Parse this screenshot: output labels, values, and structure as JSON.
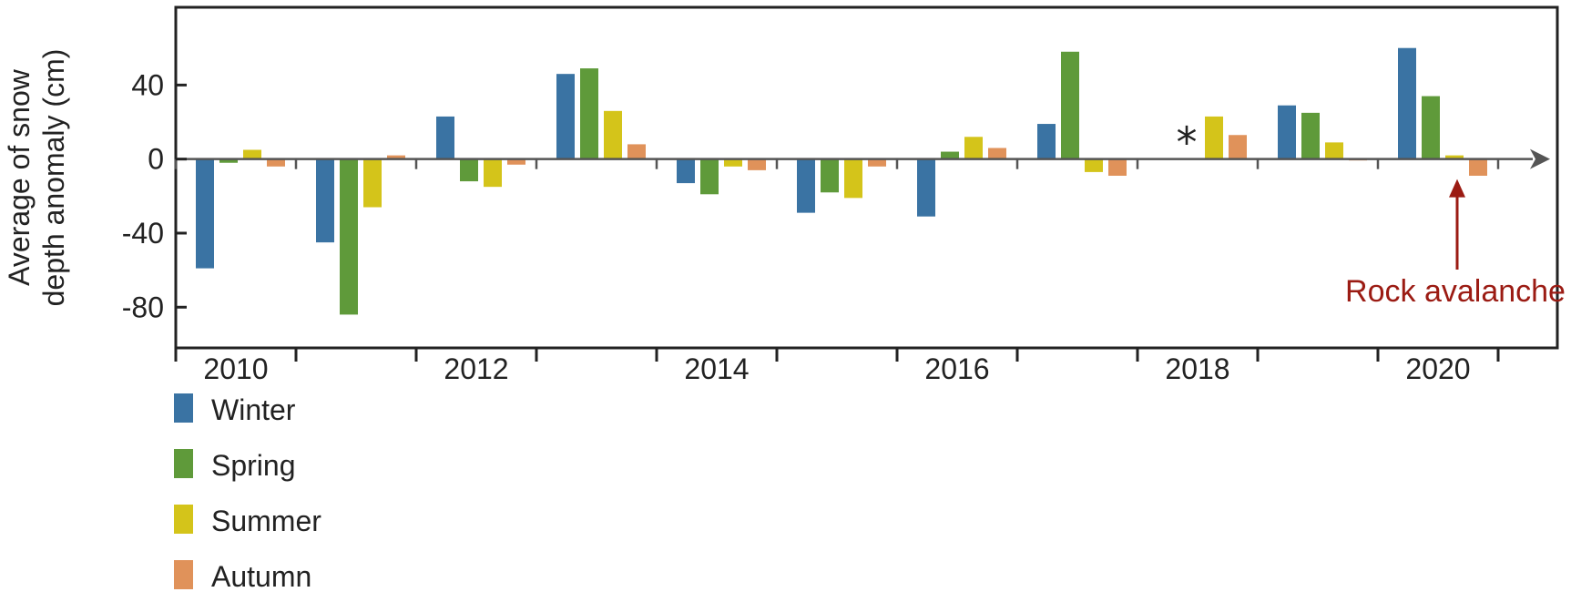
{
  "chart_data": {
    "type": "bar",
    "categories": [
      "2010",
      "2011",
      "2012",
      "2013",
      "2014",
      "2015",
      "2016",
      "2017",
      "2018",
      "2019",
      "2020"
    ],
    "x_tick_labels": [
      "2010",
      "2012",
      "2014",
      "2016",
      "2018",
      "2020"
    ],
    "y_ticks": [
      40,
      0,
      -40,
      -80
    ],
    "y_tick_labels": [
      "40",
      "0",
      "-40",
      "-80"
    ],
    "ylim": [
      -102,
      82
    ],
    "ylabel_lines": [
      "Average of snow",
      "depth anomaly  (cm)"
    ],
    "xlabel": "",
    "grid": false,
    "legend_position": "bottom-left",
    "series": [
      {
        "name": "Winter",
        "color": "#3a73a3",
        "values": [
          -59,
          -45,
          23,
          46,
          -13,
          -29,
          -31,
          19,
          null,
          29,
          60
        ]
      },
      {
        "name": "Spring",
        "color": "#5f9a3a",
        "values": [
          -2,
          -84,
          -12,
          49,
          -19,
          -18,
          4,
          58,
          null,
          25,
          34
        ]
      },
      {
        "name": "Summer",
        "color": "#d4c41a",
        "values": [
          5,
          -26,
          -15,
          26,
          -4,
          -21,
          12,
          -7,
          23,
          9,
          2
        ]
      },
      {
        "name": "Autumn",
        "color": "#e0925a",
        "values": [
          -4,
          2,
          -3,
          8,
          -6,
          -4,
          6,
          -9,
          13,
          0,
          -9
        ]
      }
    ],
    "annotations": [
      {
        "text": "*",
        "category": "2018",
        "y": 12
      },
      {
        "text": "Rock avalanche",
        "color": "#9b1b13",
        "category": "2020",
        "arrow_to_y": -10
      }
    ]
  }
}
